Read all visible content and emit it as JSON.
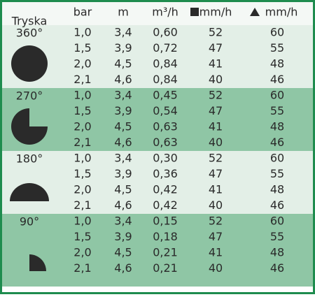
{
  "header": {
    "nozzle": "Tryska",
    "columns": [
      "bar",
      "m",
      "m³/h",
      "mm/h",
      "mm/h"
    ]
  },
  "groups": [
    {
      "angle": "360°",
      "rows": [
        [
          "1,0",
          "3,4",
          "0,60",
          "52",
          "60"
        ],
        [
          "1,5",
          "3,9",
          "0,72",
          "47",
          "55"
        ],
        [
          "2,0",
          "4,5",
          "0,84",
          "41",
          "48"
        ],
        [
          "2,1",
          "4,6",
          "0,84",
          "40",
          "46"
        ]
      ]
    },
    {
      "angle": "270°",
      "rows": [
        [
          "1,0",
          "3,4",
          "0,45",
          "52",
          "60"
        ],
        [
          "1,5",
          "3,9",
          "0,54",
          "47",
          "55"
        ],
        [
          "2,0",
          "4,5",
          "0,63",
          "41",
          "48"
        ],
        [
          "2,1",
          "4,6",
          "0,63",
          "40",
          "46"
        ]
      ]
    },
    {
      "angle": "180°",
      "rows": [
        [
          "1,0",
          "3,4",
          "0,30",
          "52",
          "60"
        ],
        [
          "1,5",
          "3,9",
          "0,36",
          "47",
          "55"
        ],
        [
          "2,0",
          "4,5",
          "0,42",
          "41",
          "48"
        ],
        [
          "2,1",
          "4,6",
          "0,42",
          "40",
          "46"
        ]
      ]
    },
    {
      "angle": "90°",
      "rows": [
        [
          "1,0",
          "3,4",
          "0,15",
          "52",
          "60"
        ],
        [
          "1,5",
          "3,9",
          "0,18",
          "47",
          "55"
        ],
        [
          "2,0",
          "4,5",
          "0,21",
          "41",
          "48"
        ],
        [
          "2,1",
          "4,6",
          "0,21",
          "40",
          "46"
        ]
      ]
    }
  ]
}
